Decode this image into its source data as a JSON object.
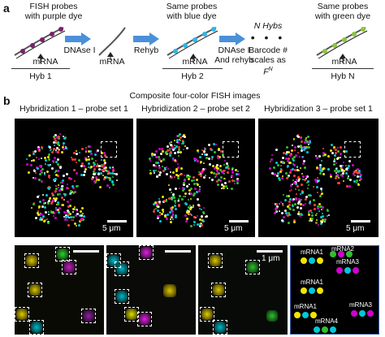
{
  "panel_a": {
    "letter": "a",
    "step1_title": [
      "FISH probes",
      "with purple dye"
    ],
    "step1_mrna": "mRNA",
    "step1_hyb": "Hyb 1",
    "arrow1_label": "DNAse I",
    "step2_mrna": "mRNA",
    "arrow2_label": "Rehyb",
    "step3_title": [
      "Same probes",
      "with blue dye"
    ],
    "step3_mrna": "mRNA",
    "step3_hyb": "Hyb 2",
    "arrow3_label": [
      "DNAse I",
      "And rehyb"
    ],
    "nhybs_title": "N Hybs",
    "nhybs_dots": "• • •",
    "barcode_text": [
      "Barcode #",
      "scales as",
      "F"
    ],
    "barcode_sup": "N",
    "step4_title": [
      "Same probes",
      "with green dye"
    ],
    "step4_mrna": "mRNA",
    "step4_hyb": "Hyb N",
    "colors": {
      "purple": "#7a1f6e",
      "blue": "#2fb6e8",
      "green": "#8cc63f",
      "arrow": "#4a90d9",
      "strand": "#555555"
    }
  },
  "panel_b": {
    "letter": "b",
    "heading": "Composite four-color FISH images",
    "hyb_titles": [
      "Hybridization 1 – probe set 1",
      "Hybridization 2 – probe set 2",
      "Hybridization 3 – probe set 1"
    ],
    "scale_label_large": "5 μm",
    "scale_label_small": "1 μm",
    "legend": {
      "labels": [
        "mRNA1",
        "mRNA2",
        "mRNA3",
        "mRNA1",
        "mRNA1",
        "mRNA3",
        "mRNA4"
      ]
    },
    "dot_colors": {
      "yellow": "#f2e600",
      "cyan": "#00c8d8",
      "magenta": "#d000d0",
      "green": "#30c030",
      "white": "#ffffff"
    }
  }
}
